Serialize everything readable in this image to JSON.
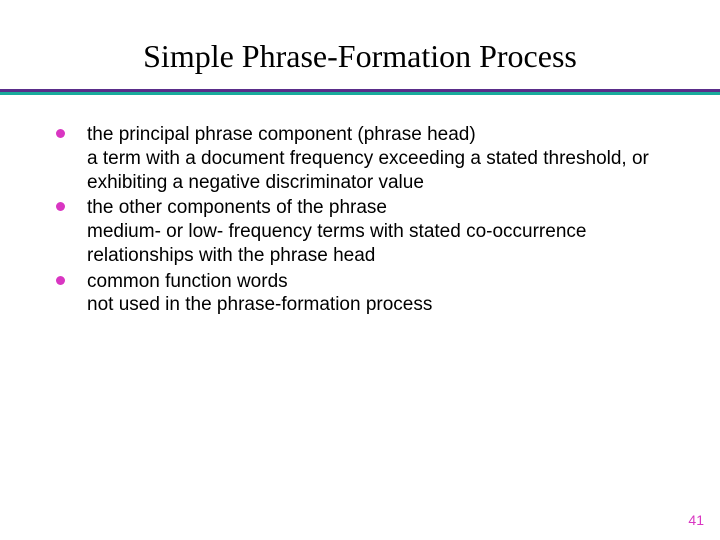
{
  "title": "Simple Phrase-Formation Process",
  "rule": {
    "top_color": "#5a2d8a",
    "bottom_color": "#1aab9b"
  },
  "bullet_color": "#d936c2",
  "pagenum_color": "#d936c2",
  "items": [
    {
      "heading": "the principal phrase component (phrase head)",
      "body": "a term with a document frequency exceeding a stated threshold, or exhibiting a negative discriminator value"
    },
    {
      "heading": "the other components of the phrase",
      "body": "medium- or low- frequency terms with stated co-occurrence relationships with the phrase head"
    },
    {
      "heading": "common function words",
      "body": "not used in the phrase-formation process"
    }
  ],
  "page_number": "41"
}
